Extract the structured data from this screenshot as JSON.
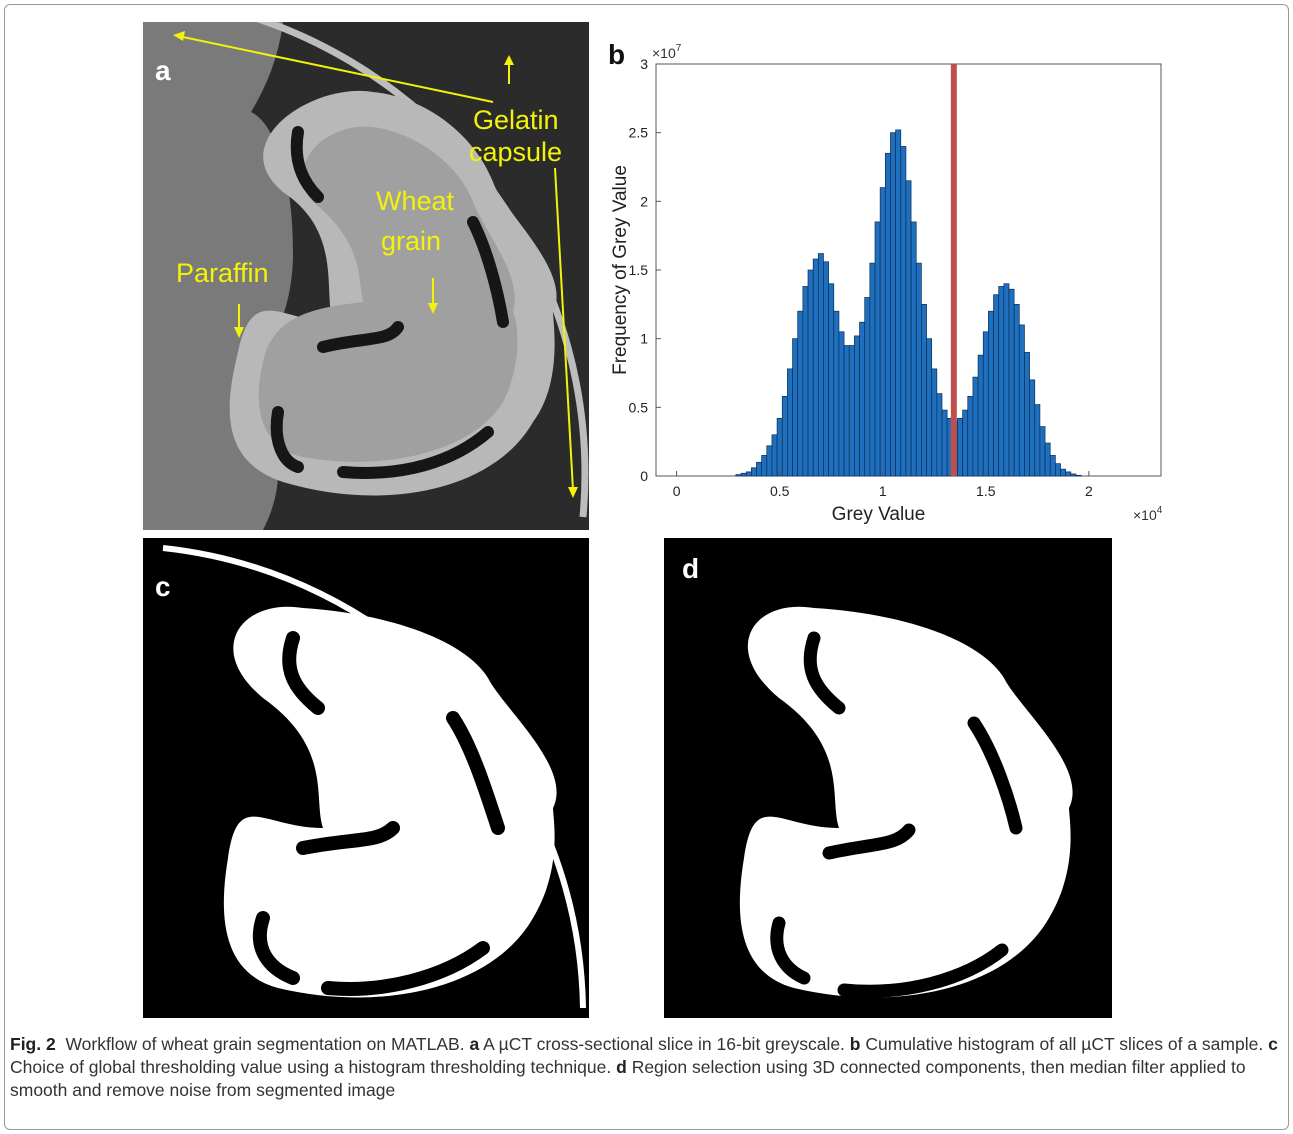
{
  "figure": {
    "panel_letters": {
      "a": "a",
      "b": "b",
      "c": "c",
      "d": "d"
    },
    "annotations": {
      "gelatin_line1": "Gelatin",
      "gelatin_line2": "capsule",
      "wheat_line1": "Wheat",
      "wheat_line2": "grain",
      "paraffin": "Paraffin"
    },
    "caption": {
      "fig_label": "Fig. 2",
      "intro": "Workflow of wheat grain segmentation on MATLAB.",
      "a_label": "a",
      "a_text": "A µCT cross-sectional slice in 16-bit greyscale.",
      "b_label": "b",
      "b_text": "Cumulative histogram of all µCT slices of a sample.",
      "c_label": "c",
      "c_text": "Choice of global thresholding value using a histogram thresholding technique.",
      "d_label": "d",
      "d_text": "Region selection using 3D connected components, then median filter applied to smooth and remove noise from segmented image"
    },
    "colors": {
      "bar_fill": "#1f6fbf",
      "threshold_line": "#c0504d",
      "annotation_yellow": "#f2f20a"
    }
  },
  "chart_data": {
    "type": "bar",
    "xlabel": "Grey Value",
    "ylabel": "Frequency of Grey Value",
    "x_exponent": "×10^4",
    "y_exponent": "×10^7",
    "xlim": [
      -0.1,
      2.35
    ],
    "ylim": [
      0,
      3
    ],
    "xticks": [
      0,
      0.5,
      1,
      1.5,
      2
    ],
    "xtick_labels": [
      "0",
      "0.5",
      "1",
      "1.5",
      "2"
    ],
    "yticks": [
      0,
      0.5,
      1,
      1.5,
      2,
      2.5,
      3
    ],
    "ytick_labels": [
      "0",
      "0.5",
      "1",
      "1.5",
      "2",
      "2.5",
      "3"
    ],
    "bin_width": 0.025,
    "threshold": 1.345,
    "x": [
      0.3,
      0.325,
      0.35,
      0.375,
      0.4,
      0.425,
      0.45,
      0.475,
      0.5,
      0.525,
      0.55,
      0.575,
      0.6,
      0.625,
      0.65,
      0.675,
      0.7,
      0.725,
      0.75,
      0.775,
      0.8,
      0.825,
      0.85,
      0.875,
      0.9,
      0.925,
      0.95,
      0.975,
      1.0,
      1.025,
      1.05,
      1.075,
      1.1,
      1.125,
      1.15,
      1.175,
      1.2,
      1.225,
      1.25,
      1.275,
      1.3,
      1.325,
      1.35,
      1.375,
      1.4,
      1.425,
      1.45,
      1.475,
      1.5,
      1.525,
      1.55,
      1.575,
      1.6,
      1.625,
      1.65,
      1.675,
      1.7,
      1.725,
      1.75,
      1.775,
      1.8,
      1.825,
      1.85,
      1.875,
      1.9,
      1.925,
      1.95
    ],
    "values": [
      0.01,
      0.02,
      0.03,
      0.06,
      0.1,
      0.15,
      0.22,
      0.3,
      0.42,
      0.58,
      0.78,
      1.0,
      1.2,
      1.38,
      1.5,
      1.58,
      1.62,
      1.56,
      1.4,
      1.2,
      1.05,
      0.95,
      0.95,
      1.02,
      1.12,
      1.3,
      1.55,
      1.85,
      2.1,
      2.35,
      2.5,
      2.52,
      2.4,
      2.15,
      1.85,
      1.55,
      1.25,
      1.0,
      0.78,
      0.6,
      0.48,
      0.42,
      0.4,
      0.42,
      0.48,
      0.58,
      0.72,
      0.88,
      1.05,
      1.2,
      1.32,
      1.38,
      1.4,
      1.36,
      1.25,
      1.1,
      0.9,
      0.7,
      0.52,
      0.36,
      0.24,
      0.15,
      0.09,
      0.05,
      0.03,
      0.015,
      0.005
    ]
  }
}
